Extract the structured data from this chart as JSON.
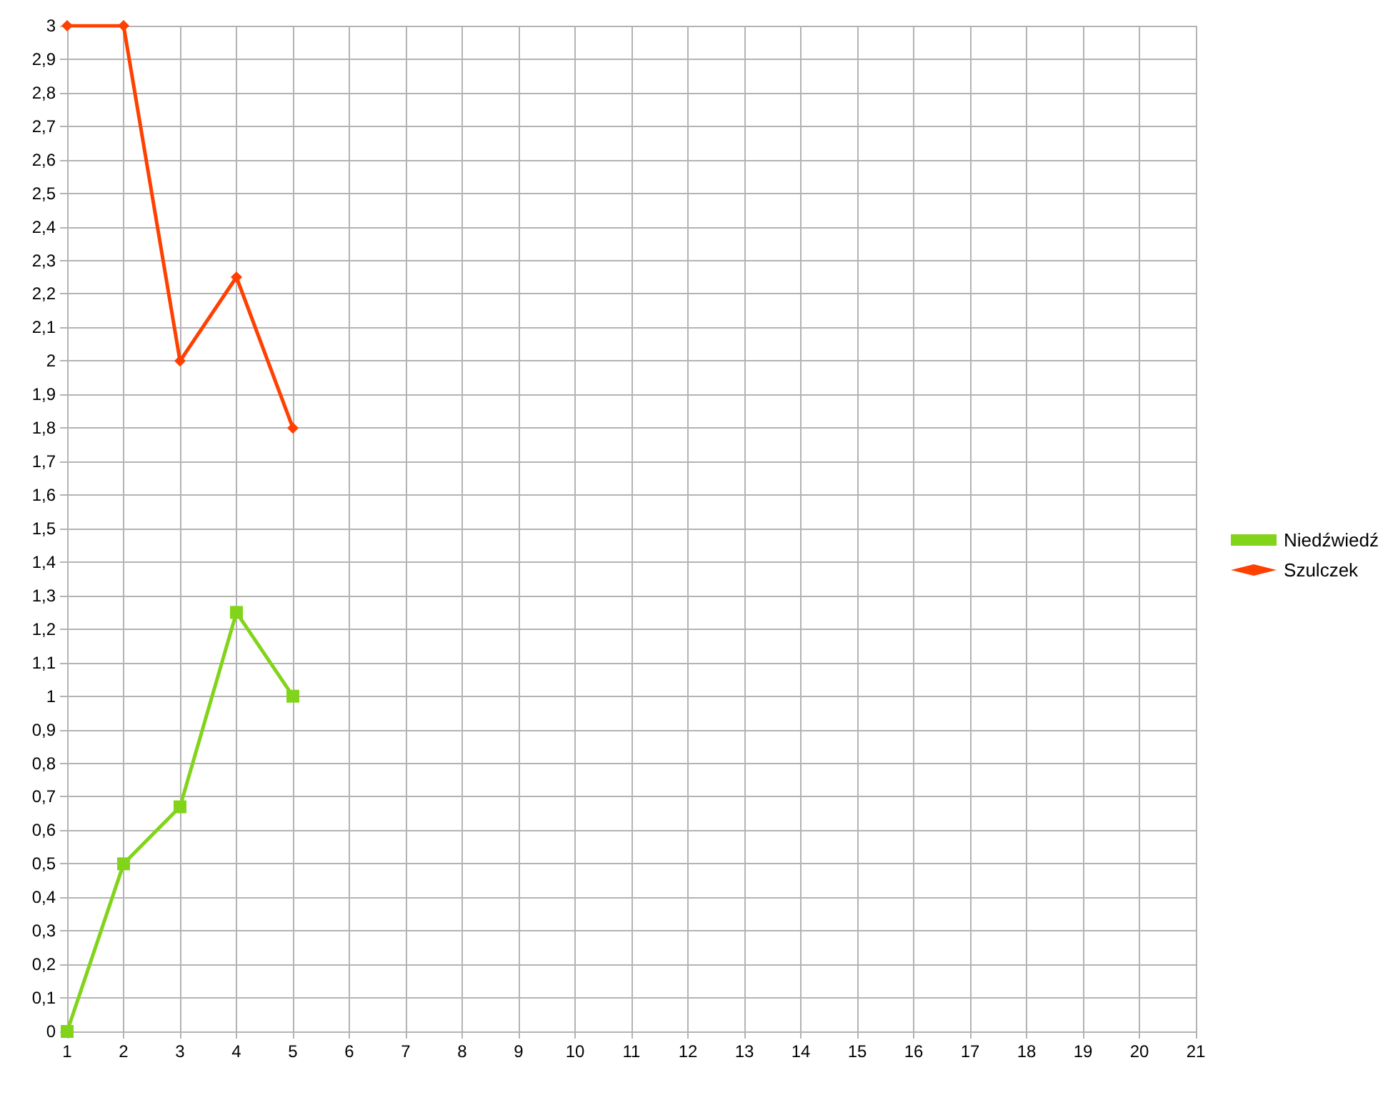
{
  "chart_data": {
    "type": "line",
    "x": [
      1,
      2,
      3,
      4,
      5
    ],
    "series": [
      {
        "name": "Niedźwiedź",
        "color": "#81d41a",
        "marker": "square",
        "values": [
          0,
          0.5,
          0.67,
          1.25,
          1
        ]
      },
      {
        "name": "Szulczek",
        "color": "#ff4000",
        "marker": "diamond",
        "values": [
          3,
          3,
          2,
          2.25,
          1.8
        ]
      }
    ],
    "xlim": [
      1,
      21
    ],
    "xticks": [
      1,
      2,
      3,
      4,
      5,
      6,
      7,
      8,
      9,
      10,
      11,
      12,
      13,
      14,
      15,
      16,
      17,
      18,
      19,
      20,
      21
    ],
    "ylim": [
      0,
      3
    ],
    "yticks": [
      0,
      {
        "value": 0.1,
        "label": "0,1"
      },
      {
        "value": 0.2,
        "label": "0,2"
      },
      {
        "value": 0.3,
        "label": "0,3"
      },
      {
        "value": 0.4,
        "label": "0,4"
      },
      {
        "value": 0.5,
        "label": "0,5"
      },
      {
        "value": 0.6,
        "label": "0,6"
      },
      {
        "value": 0.7,
        "label": "0,7"
      },
      {
        "value": 0.8,
        "label": "0,8"
      },
      {
        "value": 0.9,
        "label": "0,9"
      },
      1,
      {
        "value": 1.1,
        "label": "1,1"
      },
      {
        "value": 1.2,
        "label": "1,2"
      },
      {
        "value": 1.3,
        "label": "1,3"
      },
      {
        "value": 1.4,
        "label": "1,4"
      },
      {
        "value": 1.5,
        "label": "1,5"
      },
      {
        "value": 1.6,
        "label": "1,6"
      },
      {
        "value": 1.7,
        "label": "1,7"
      },
      {
        "value": 1.8,
        "label": "1,8"
      },
      {
        "value": 1.9,
        "label": "1,9"
      },
      2,
      {
        "value": 2.1,
        "label": "2,1"
      },
      {
        "value": 2.2,
        "label": "2,2"
      },
      {
        "value": 2.3,
        "label": "2,3"
      },
      {
        "value": 2.4,
        "label": "2,4"
      },
      {
        "value": 2.5,
        "label": "2,5"
      },
      {
        "value": 2.6,
        "label": "2,6"
      },
      {
        "value": 2.7,
        "label": "2,7"
      },
      {
        "value": 2.8,
        "label": "2,8"
      },
      {
        "value": 2.9,
        "label": "2,9"
      },
      3
    ],
    "grid": true,
    "legend": "right",
    "line_style": "solid"
  }
}
